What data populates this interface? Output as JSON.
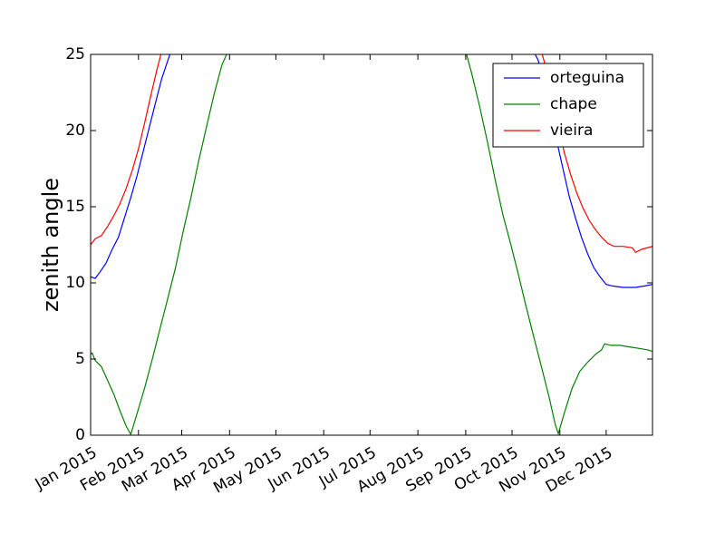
{
  "chart_data": {
    "type": "line",
    "title": "",
    "xlabel": "",
    "ylabel": "zenith angle",
    "xlim": [
      "2015-01-01",
      "2015-12-31"
    ],
    "ylim": [
      0,
      25
    ],
    "y_ticks": [
      0,
      5,
      10,
      15,
      20,
      25
    ],
    "x_ticks": [
      {
        "date": "2015-01-01",
        "label": "Jan 2015"
      },
      {
        "date": "2015-02-01",
        "label": "Feb 2015"
      },
      {
        "date": "2015-03-01",
        "label": "Mar 2015"
      },
      {
        "date": "2015-04-01",
        "label": "Apr 2015"
      },
      {
        "date": "2015-05-01",
        "label": "May 2015"
      },
      {
        "date": "2015-06-01",
        "label": "Jun 2015"
      },
      {
        "date": "2015-07-01",
        "label": "Jul 2015"
      },
      {
        "date": "2015-08-01",
        "label": "Aug 2015"
      },
      {
        "date": "2015-09-01",
        "label": "Sep 2015"
      },
      {
        "date": "2015-10-01",
        "label": "Oct 2015"
      },
      {
        "date": "2015-11-01",
        "label": "Nov 2015"
      },
      {
        "date": "2015-12-01",
        "label": "Dec 2015"
      }
    ],
    "grid": false,
    "legend_position": "top-right",
    "series": [
      {
        "name": "orteguina",
        "color": "#0000ff",
        "points": [
          [
            "2015-01-01",
            10.4
          ],
          [
            "2015-01-04",
            10.3
          ],
          [
            "2015-01-07",
            10.7
          ],
          [
            "2015-01-11",
            11.3
          ],
          [
            "2015-01-15",
            12.2
          ],
          [
            "2015-01-19",
            13.0
          ],
          [
            "2015-01-23",
            14.3
          ],
          [
            "2015-01-27",
            15.6
          ],
          [
            "2015-01-31",
            17.0
          ],
          [
            "2015-02-04",
            18.6
          ],
          [
            "2015-02-08",
            20.2
          ],
          [
            "2015-02-12",
            21.8
          ],
          [
            "2015-02-16",
            23.4
          ],
          [
            "2015-02-20",
            24.6
          ],
          [
            "2015-02-22",
            25.2
          ],
          null,
          [
            "2015-10-15",
            25.2
          ],
          [
            "2015-10-18",
            24.6
          ],
          [
            "2015-10-22",
            22.9
          ],
          [
            "2015-10-26",
            21.2
          ],
          [
            "2015-10-30",
            19.3
          ],
          [
            "2015-11-03",
            17.5
          ],
          [
            "2015-11-07",
            15.7
          ],
          [
            "2015-11-11",
            14.3
          ],
          [
            "2015-11-15",
            13.0
          ],
          [
            "2015-11-19",
            11.9
          ],
          [
            "2015-11-23",
            11.0
          ],
          [
            "2015-11-27",
            10.4
          ],
          [
            "2015-12-01",
            9.9
          ],
          [
            "2015-12-05",
            9.8
          ],
          [
            "2015-12-12",
            9.7
          ],
          [
            "2015-12-20",
            9.7
          ],
          [
            "2015-12-26",
            9.8
          ],
          [
            "2015-12-31",
            9.9
          ]
        ]
      },
      {
        "name": "chape",
        "color": "#008000",
        "points": [
          [
            "2015-01-01",
            5.3
          ],
          [
            "2015-01-02",
            5.4
          ],
          [
            "2015-01-04",
            4.9
          ],
          [
            "2015-01-08",
            4.5
          ],
          [
            "2015-01-12",
            3.6
          ],
          [
            "2015-01-16",
            2.7
          ],
          [
            "2015-01-20",
            1.6
          ],
          [
            "2015-01-24",
            0.6
          ],
          [
            "2015-01-27",
            0.05
          ],
          [
            "2015-01-31",
            1.4
          ],
          [
            "2015-02-05",
            3.1
          ],
          [
            "2015-02-10",
            5.0
          ],
          [
            "2015-02-15",
            7.0
          ],
          [
            "2015-02-20",
            9.0
          ],
          [
            "2015-02-25",
            11.0
          ],
          [
            "2015-03-02",
            13.4
          ],
          [
            "2015-03-07",
            15.6
          ],
          [
            "2015-03-12",
            18.0
          ],
          [
            "2015-03-17",
            20.2
          ],
          [
            "2015-03-22",
            22.4
          ],
          [
            "2015-03-27",
            24.3
          ],
          [
            "2015-03-31",
            25.2
          ],
          null,
          [
            "2015-09-01",
            25.2
          ],
          [
            "2015-09-05",
            23.7
          ],
          [
            "2015-09-10",
            21.6
          ],
          [
            "2015-09-15",
            19.3
          ],
          [
            "2015-09-20",
            16.8
          ],
          [
            "2015-09-25",
            14.5
          ],
          [
            "2015-09-30",
            12.6
          ],
          [
            "2015-10-05",
            10.6
          ],
          [
            "2015-10-10",
            8.5
          ],
          [
            "2015-10-15",
            6.5
          ],
          [
            "2015-10-20",
            4.5
          ],
          [
            "2015-10-25",
            2.5
          ],
          [
            "2015-10-29",
            0.7
          ],
          [
            "2015-10-31",
            0.1
          ],
          [
            "2015-11-04",
            1.5
          ],
          [
            "2015-11-09",
            3.1
          ],
          [
            "2015-11-14",
            4.2
          ],
          [
            "2015-11-19",
            4.8
          ],
          [
            "2015-11-24",
            5.3
          ],
          [
            "2015-11-28",
            5.6
          ],
          [
            "2015-11-30",
            6.0
          ],
          [
            "2015-12-04",
            5.9
          ],
          [
            "2015-12-10",
            5.9
          ],
          [
            "2015-12-16",
            5.8
          ],
          [
            "2015-12-22",
            5.7
          ],
          [
            "2015-12-28",
            5.6
          ],
          [
            "2015-12-31",
            5.5
          ]
        ]
      },
      {
        "name": "vieira",
        "color": "#ff0000",
        "points": [
          [
            "2015-01-01",
            12.5
          ],
          [
            "2015-01-04",
            12.9
          ],
          [
            "2015-01-08",
            13.1
          ],
          [
            "2015-01-12",
            13.7
          ],
          [
            "2015-01-16",
            14.4
          ],
          [
            "2015-01-20",
            15.2
          ],
          [
            "2015-01-24",
            16.2
          ],
          [
            "2015-01-28",
            17.4
          ],
          [
            "2015-02-01",
            18.8
          ],
          [
            "2015-02-05",
            20.5
          ],
          [
            "2015-02-09",
            22.3
          ],
          [
            "2015-02-13",
            24.0
          ],
          [
            "2015-02-16",
            25.2
          ],
          null,
          [
            "2015-10-20",
            25.2
          ],
          [
            "2015-10-23",
            24.1
          ],
          [
            "2015-10-27",
            22.3
          ],
          [
            "2015-10-31",
            20.3
          ],
          [
            "2015-11-04",
            18.5
          ],
          [
            "2015-11-08",
            17.1
          ],
          [
            "2015-11-12",
            15.9
          ],
          [
            "2015-11-16",
            14.9
          ],
          [
            "2015-11-20",
            14.1
          ],
          [
            "2015-11-24",
            13.5
          ],
          [
            "2015-11-28",
            13.0
          ],
          [
            "2015-12-02",
            12.6
          ],
          [
            "2015-12-06",
            12.4
          ],
          [
            "2015-12-12",
            12.4
          ],
          [
            "2015-12-18",
            12.3
          ],
          [
            "2015-12-20",
            12.0
          ],
          [
            "2015-12-24",
            12.2
          ],
          [
            "2015-12-31",
            12.4
          ]
        ]
      }
    ]
  }
}
